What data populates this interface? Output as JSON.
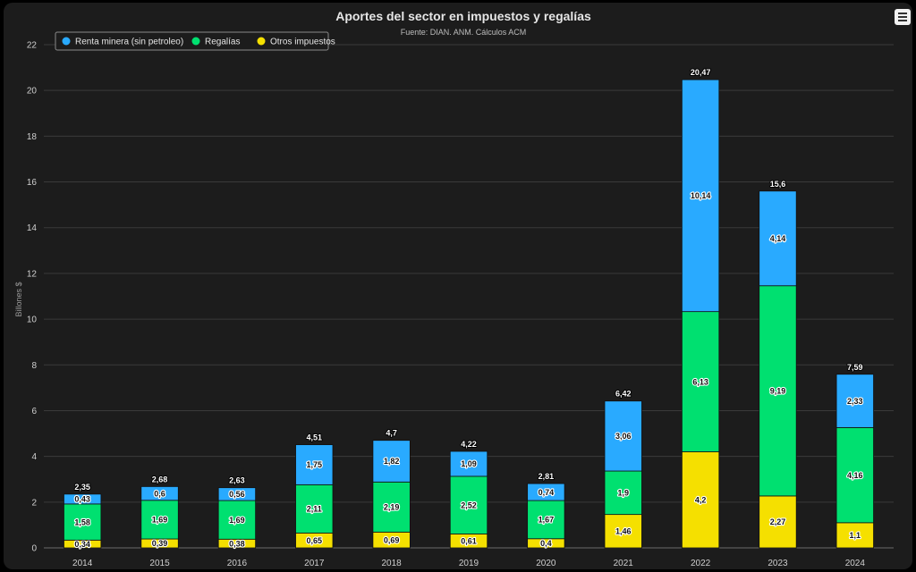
{
  "chart_data": {
    "type": "bar",
    "stacked": true,
    "title": "Aportes del sector en impuestos y regalías",
    "subtitle": "Fuente: DIAN. ANM. Cálculos ACM",
    "xlabel": "",
    "ylabel": "Billones $",
    "ylim": [
      0,
      22
    ],
    "yticks": [
      "0",
      "2",
      "4",
      "6",
      "8",
      "10",
      "12",
      "14",
      "16",
      "18",
      "20",
      "22"
    ],
    "grid": true,
    "legend_position": "top-left",
    "categories": [
      "2014",
      "2015",
      "2016",
      "2017",
      "2018",
      "2019",
      "2020",
      "2021",
      "2022",
      "2023",
      "2024"
    ],
    "series": [
      {
        "name": "Otros impuestos",
        "color": "#f5e000",
        "values": [
          0.34,
          0.39,
          0.38,
          0.65,
          0.69,
          0.61,
          0.4,
          1.46,
          4.2,
          2.27,
          1.1
        ],
        "labels": [
          "0,34",
          "0,39",
          "0,38",
          "0,65",
          "0,69",
          "0,61",
          "0,4",
          "1,46",
          "4,2",
          "2,27",
          "1,1"
        ]
      },
      {
        "name": "Regalías",
        "color": "#00e070",
        "values": [
          1.58,
          1.69,
          1.69,
          2.11,
          2.19,
          2.52,
          1.67,
          1.9,
          6.13,
          9.19,
          4.16
        ],
        "labels": [
          "1,58",
          "1,69",
          "1,69",
          "2,11",
          "2,19",
          "2,52",
          "1,67",
          "1,9",
          "6,13",
          "9,19",
          "4,16"
        ]
      },
      {
        "name": "Renta minera (sin petroleo)",
        "color": "#29aaff",
        "values": [
          0.43,
          0.6,
          0.56,
          1.75,
          1.82,
          1.09,
          0.74,
          3.06,
          10.14,
          4.14,
          2.33
        ],
        "labels": [
          "0,43",
          "0,6",
          "0,56",
          "1,75",
          "1,82",
          "1,09",
          "0,74",
          "3,06",
          "10,14",
          "4,14",
          "2,33"
        ]
      }
    ],
    "legend_order": [
      "Renta minera (sin petroleo)",
      "Regalías",
      "Otros impuestos"
    ],
    "totals": [
      2.35,
      2.68,
      2.63,
      4.51,
      4.7,
      4.22,
      2.81,
      6.42,
      20.47,
      15.6,
      7.59
    ],
    "total_labels": [
      "2,35",
      "2,68",
      "2,63",
      "4,51",
      "4,7",
      "4,22",
      "2,81",
      "6,42",
      "20,47",
      "15,6",
      "7,59"
    ]
  },
  "menu_icon": "hamburger-menu-icon"
}
